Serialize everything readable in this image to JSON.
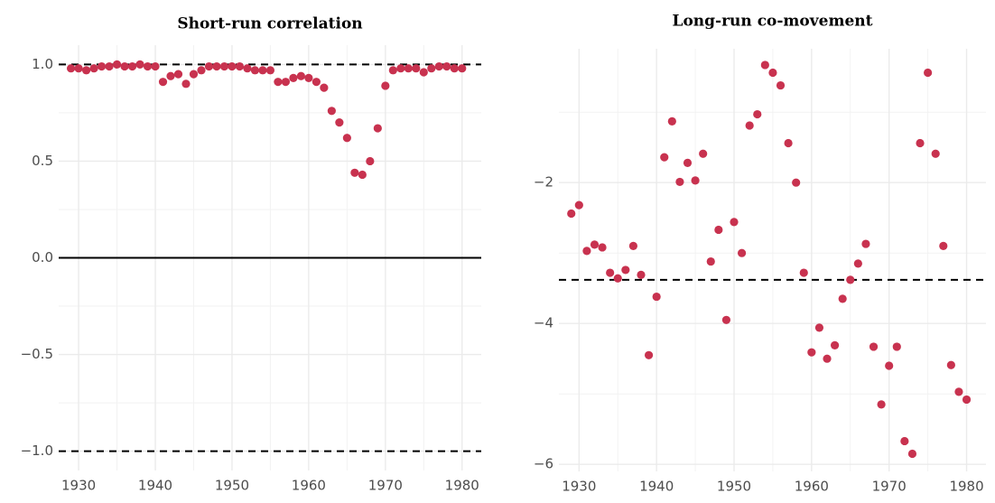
{
  "chart_data": [
    {
      "type": "scatter",
      "title": "Short-run correlation",
      "color": "#c8324f",
      "grid": true,
      "x": [
        1929,
        1930,
        1931,
        1932,
        1933,
        1934,
        1935,
        1936,
        1937,
        1938,
        1939,
        1940,
        1941,
        1942,
        1943,
        1944,
        1945,
        1946,
        1947,
        1948,
        1949,
        1950,
        1951,
        1952,
        1953,
        1954,
        1955,
        1956,
        1957,
        1958,
        1959,
        1960,
        1961,
        1962,
        1963,
        1964,
        1965,
        1966,
        1967,
        1968,
        1969,
        1970,
        1971,
        1972,
        1973,
        1974,
        1975,
        1976,
        1977,
        1978,
        1979,
        1980
      ],
      "values": [
        0.98,
        0.98,
        0.97,
        0.98,
        0.99,
        0.99,
        1.0,
        0.99,
        0.99,
        1.0,
        0.99,
        0.99,
        0.91,
        0.94,
        0.95,
        0.9,
        0.95,
        0.97,
        0.99,
        0.99,
        0.99,
        0.99,
        0.99,
        0.98,
        0.97,
        0.97,
        0.97,
        0.91,
        0.91,
        0.93,
        0.94,
        0.93,
        0.91,
        0.88,
        0.76,
        0.7,
        0.62,
        0.44,
        0.43,
        0.5,
        0.67,
        0.89,
        0.97,
        0.98,
        0.98,
        0.98,
        0.96,
        0.98,
        0.99,
        0.99,
        0.98,
        0.98
      ],
      "xlim": [
        1927.4,
        1982.5
      ],
      "xticks": [
        1930,
        1940,
        1950,
        1960,
        1970,
        1980
      ],
      "ylim": [
        -1.1,
        1.1
      ],
      "yticks": [
        {
          "value": -1,
          "label": "−1.0"
        },
        {
          "value": -0.5,
          "label": "−0.5"
        },
        {
          "value": 0,
          "label": "0.0"
        },
        0.5,
        {
          "value": 1,
          "label": "1.0"
        }
      ],
      "hlines": [
        {
          "value": 1,
          "style": "dashed"
        },
        {
          "value": 0,
          "style": "solid"
        },
        {
          "value": -1,
          "style": "dashed"
        }
      ]
    },
    {
      "type": "scatter",
      "title": "Long-run co-movement",
      "color": "#c8324f",
      "grid": true,
      "x": [
        1929,
        1930,
        1931,
        1932,
        1933,
        1934,
        1935,
        1936,
        1937,
        1938,
        1939,
        1940,
        1941,
        1942,
        1943,
        1944,
        1945,
        1946,
        1947,
        1948,
        1949,
        1950,
        1951,
        1952,
        1953,
        1954,
        1955,
        1956,
        1957,
        1958,
        1959,
        1960,
        1961,
        1962,
        1963,
        1964,
        1965,
        1966,
        1967,
        1968,
        1969,
        1970,
        1971,
        1972,
        1973,
        1974,
        1975,
        1976,
        1977,
        1978,
        1979,
        1980
      ],
      "values": [
        -2.44,
        -2.32,
        -2.97,
        -2.88,
        -2.92,
        -3.28,
        -3.36,
        -3.24,
        -2.9,
        -3.31,
        -4.45,
        -3.62,
        -1.64,
        -1.13,
        -1.99,
        -1.72,
        -1.97,
        -1.59,
        -3.12,
        -2.67,
        -3.95,
        -2.56,
        -3.0,
        -1.19,
        -1.03,
        -0.33,
        -0.44,
        -0.62,
        -1.44,
        -2.0,
        -3.28,
        -4.41,
        -4.06,
        -4.5,
        -4.31,
        -3.65,
        -3.38,
        -3.15,
        -2.87,
        -4.33,
        -5.15,
        -4.6,
        -4.33,
        -5.67,
        -5.85,
        -1.44,
        -0.44,
        -1.59,
        -2.9,
        -4.59,
        -4.97,
        -5.08
      ],
      "xlim": [
        1927.4,
        1982.5
      ],
      "xticks": [
        1930,
        1940,
        1950,
        1960,
        1970,
        1980
      ],
      "ylim": [
        -6.1,
        -0.1
      ],
      "yticks": [
        {
          "value": -6,
          "label": "−6"
        },
        {
          "value": -4,
          "label": "−4"
        },
        {
          "value": -2,
          "label": "−2"
        }
      ],
      "hlines": [
        {
          "value": -3.38,
          "style": "dashed"
        }
      ]
    }
  ]
}
